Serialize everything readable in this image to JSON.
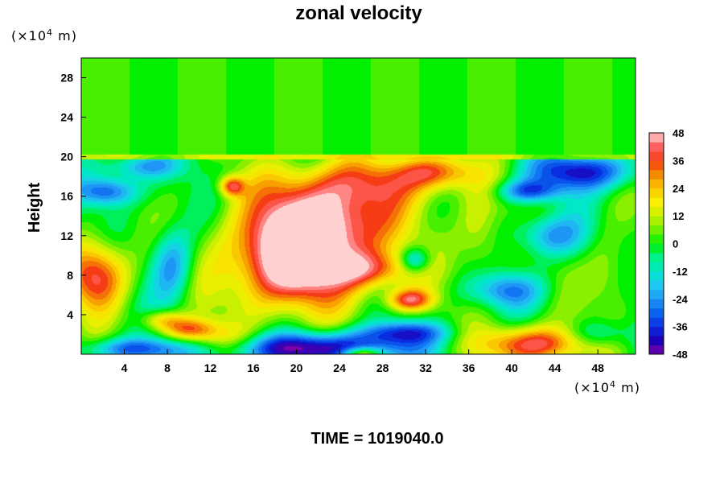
{
  "chart_data": {
    "type": "heatmap",
    "title": "zonal velocity",
    "ylabel": "Height",
    "xlabel": "",
    "y_unit": {
      "prefix": "(×10",
      "sup": "4",
      "suffix": " m)"
    },
    "x_unit": {
      "prefix": "(×10",
      "sup": "4",
      "suffix": " m)"
    },
    "xlim": [
      0,
      51.5
    ],
    "ylim": [
      0,
      30
    ],
    "x_ticks": [
      4,
      8,
      12,
      16,
      20,
      24,
      28,
      32,
      36,
      40,
      44,
      48
    ],
    "y_ticks": [
      4,
      8,
      12,
      16,
      20,
      24,
      28
    ],
    "colorbar": {
      "min": -48,
      "max": 48,
      "ticks": [
        48,
        36,
        24,
        12,
        0,
        -12,
        -24,
        -36,
        -48
      ],
      "color_stops": [
        {
          "v": -48,
          "c": "#7d00a8"
        },
        {
          "v": -42,
          "c": "#1c00b8"
        },
        {
          "v": -36,
          "c": "#0a2de0"
        },
        {
          "v": -30,
          "c": "#0b64f0"
        },
        {
          "v": -24,
          "c": "#1e96f5"
        },
        {
          "v": -18,
          "c": "#1ec8f0"
        },
        {
          "v": -12,
          "c": "#00e8c8"
        },
        {
          "v": -6,
          "c": "#00f08a"
        },
        {
          "v": 0,
          "c": "#00f000"
        },
        {
          "v": 6,
          "c": "#6cf000"
        },
        {
          "v": 12,
          "c": "#c8f000"
        },
        {
          "v": 18,
          "c": "#f8f000"
        },
        {
          "v": 24,
          "c": "#fac800"
        },
        {
          "v": 30,
          "c": "#f58c00"
        },
        {
          "v": 36,
          "c": "#f53c14"
        },
        {
          "v": 42,
          "c": "#ff6060"
        },
        {
          "v": 48,
          "c": "#ffd0d0"
        }
      ]
    },
    "field": {
      "background": 0,
      "stratosphere_above_y": 20.2,
      "stratosphere_value": 2,
      "features": [
        {
          "x": 21,
          "y": 11.5,
          "sx": 4.0,
          "sy": 3.6,
          "v": 44
        },
        {
          "x": 18.5,
          "y": 8.5,
          "sx": 4.5,
          "sy": 3.5,
          "v": 30
        },
        {
          "x": 24,
          "y": 14,
          "sx": 5,
          "sy": 3,
          "v": 24
        },
        {
          "x": 27,
          "y": 17.5,
          "sx": 6,
          "sy": 1.8,
          "v": 20
        },
        {
          "x": 33,
          "y": 18.5,
          "sx": 2.5,
          "sy": 1.2,
          "v": 30
        },
        {
          "x": 27,
          "y": 8.5,
          "sx": 3,
          "sy": 1.3,
          "v": 28
        },
        {
          "x": 30.5,
          "y": 5.5,
          "sx": 1.5,
          "sy": 0.8,
          "v": 40
        },
        {
          "x": 14,
          "y": 17,
          "sx": 0.8,
          "sy": 0.7,
          "v": 34
        },
        {
          "x": 1.5,
          "y": 8,
          "sx": 2,
          "sy": 2.5,
          "v": 42
        },
        {
          "x": 10,
          "y": 2.5,
          "sx": 1.8,
          "sy": 0.8,
          "v": 30
        },
        {
          "x": 7.5,
          "y": 3.5,
          "sx": 1.5,
          "sy": 0.7,
          "v": 22
        },
        {
          "x": 42,
          "y": 1,
          "sx": 3.5,
          "sy": 1.3,
          "v": 44
        },
        {
          "x": 26,
          "y": 0,
          "sx": 1.3,
          "sy": 0.5,
          "v": 36
        },
        {
          "x": 22,
          "y": 0.6,
          "sx": 6,
          "sy": 1.1,
          "v": -48
        },
        {
          "x": 30,
          "y": 2.2,
          "sx": 3,
          "sy": 0.8,
          "v": -30
        },
        {
          "x": 5,
          "y": 0.5,
          "sx": 3,
          "sy": 0.8,
          "v": -32
        },
        {
          "x": 8.5,
          "y": 9,
          "sx": 1.4,
          "sy": 2.8,
          "v": -28
        },
        {
          "x": 2.5,
          "y": 16.5,
          "sx": 2,
          "sy": 1.0,
          "v": -32
        },
        {
          "x": 5.5,
          "y": 19,
          "sx": 2.5,
          "sy": 0.9,
          "v": -24
        },
        {
          "x": 46.5,
          "y": 18.5,
          "sx": 3.5,
          "sy": 1.3,
          "v": -40
        },
        {
          "x": 41.5,
          "y": 16.5,
          "sx": 2,
          "sy": 0.8,
          "v": -32
        },
        {
          "x": 43.5,
          "y": 12,
          "sx": 2.2,
          "sy": 1.5,
          "v": -26
        },
        {
          "x": 39.5,
          "y": 6.5,
          "sx": 2.5,
          "sy": 1.2,
          "v": -24
        },
        {
          "x": 31,
          "y": 9.5,
          "sx": 1.0,
          "sy": 0.9,
          "v": -28
        },
        {
          "x": 37,
          "y": 12,
          "sx": 1.5,
          "sy": 3.0,
          "v": 16
        },
        {
          "x": 49,
          "y": 8,
          "sx": 1.5,
          "sy": 3,
          "v": 14
        },
        {
          "x": 48,
          "y": 2,
          "sx": 2,
          "sy": 1,
          "v": -18
        },
        {
          "x": 13,
          "y": 1.5,
          "sx": 2.5,
          "sy": 1,
          "v": 14
        }
      ]
    }
  },
  "time_label": "TIME = 1019040.0"
}
